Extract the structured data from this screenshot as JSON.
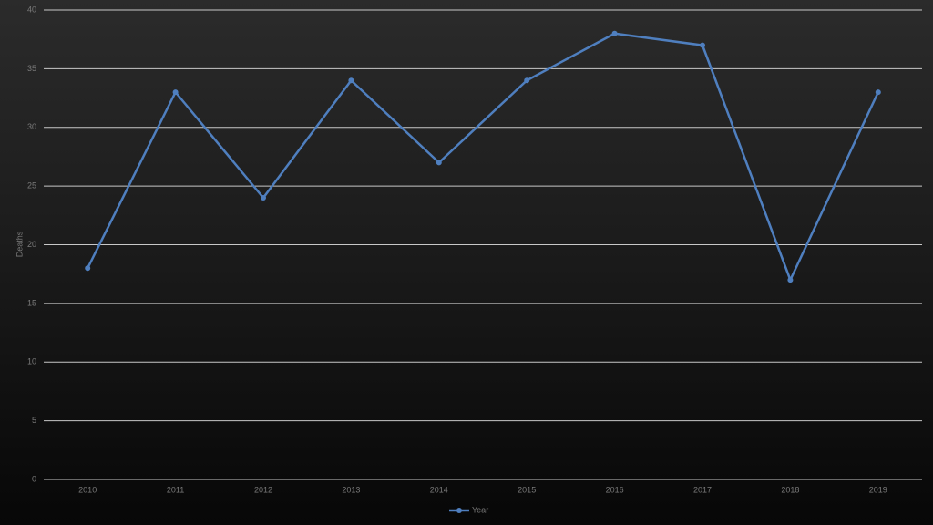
{
  "chart_data": {
    "type": "line",
    "y_label": "Deaths",
    "categories": [
      "2010",
      "2011",
      "2012",
      "2013",
      "2014",
      "2015",
      "2016",
      "2017",
      "2018",
      "2019"
    ],
    "series": [
      {
        "name": "Year",
        "color": "#4f7fbf",
        "values": [
          18,
          33,
          24,
          34,
          27,
          34,
          38,
          37,
          17,
          33
        ]
      }
    ],
    "ylim": [
      0,
      40
    ],
    "yticks": [
      0,
      5,
      10,
      15,
      20,
      25,
      30,
      35,
      40
    ],
    "grid": true,
    "legend": "bottom"
  }
}
